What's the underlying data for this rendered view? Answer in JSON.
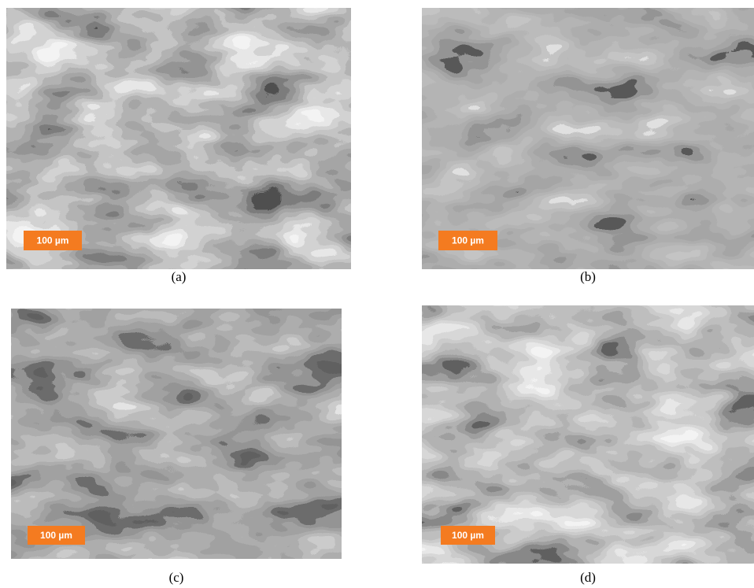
{
  "panels": [
    {
      "caption": "(a)",
      "scale_bar": "100 µm"
    },
    {
      "caption": "(b)",
      "scale_bar": "100 µm"
    },
    {
      "caption": "(c)",
      "scale_bar": "100 µm"
    },
    {
      "caption": "(d)",
      "scale_bar": "100 µm"
    }
  ]
}
